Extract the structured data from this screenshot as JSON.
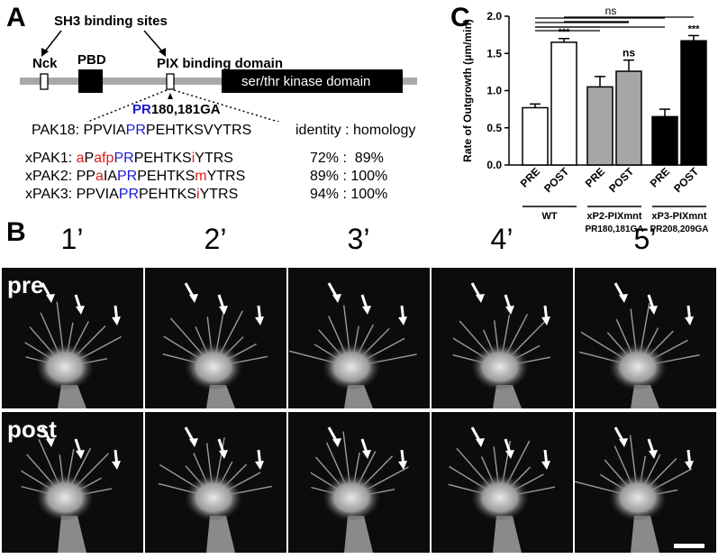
{
  "panel_a": {
    "letter": "A",
    "sh3_label": "SH3 binding sites",
    "nck_label": "Nck",
    "pbd_label": "PBD",
    "pix_label": "PIX binding domain",
    "kinase_label": "ser/thr kinase domain",
    "mutation_label_blue": "PR",
    "mutation_label_rest": "180,181GA",
    "identity_header": "identity : homology",
    "pak18": {
      "name": "PAK18:",
      "segments": [
        {
          "t": "PPVIA",
          "c": "k"
        },
        {
          "t": "PR",
          "c": "b"
        },
        {
          "t": "PEHTKSVYTRS",
          "c": "k"
        }
      ]
    },
    "rows": [
      {
        "name": "xPAK1:",
        "segments": [
          {
            "t": "a",
            "c": "r"
          },
          {
            "t": "P",
            "c": "k"
          },
          {
            "t": "afp",
            "c": "r"
          },
          {
            "t": "PR",
            "c": "b"
          },
          {
            "t": "PEHTKS",
            "c": "k"
          },
          {
            "t": "i",
            "c": "r"
          },
          {
            "t": "YTRS",
            "c": "k"
          }
        ],
        "identity": "72% :  89%"
      },
      {
        "name": "xPAK2:",
        "segments": [
          {
            "t": "PP",
            "c": "k"
          },
          {
            "t": "a",
            "c": "r"
          },
          {
            "t": "IA",
            "c": "k"
          },
          {
            "t": "PR",
            "c": "b"
          },
          {
            "t": "PEHTKS",
            "c": "k"
          },
          {
            "t": "m",
            "c": "r"
          },
          {
            "t": "YTRS",
            "c": "k"
          }
        ],
        "identity": "89% : 100%"
      },
      {
        "name": "xPAK3:",
        "segments": [
          {
            "t": "PPVIA",
            "c": "k"
          },
          {
            "t": "PR",
            "c": "b"
          },
          {
            "t": "PEHTKS",
            "c": "k"
          },
          {
            "t": "i",
            "c": "r"
          },
          {
            "t": "YTRS",
            "c": "k"
          }
        ],
        "identity": "94% : 100%"
      }
    ]
  },
  "panel_c": {
    "letter": "C",
    "chart_data": {
      "type": "bar",
      "ylabel": "Rate of Outgrowth (μm/min)",
      "ylim": [
        0,
        2.0
      ],
      "yticks": [
        "0.0",
        "0.5",
        "1.0",
        "1.5",
        "2.0"
      ],
      "bars": [
        {
          "label": "PRE",
          "value": 0.77,
          "error": 0.05,
          "color": "#ffffff",
          "sig": ""
        },
        {
          "label": "POST",
          "value": 1.65,
          "error": 0.05,
          "color": "#ffffff",
          "sig": "***"
        },
        {
          "label": "PRE",
          "value": 1.05,
          "error": 0.14,
          "color": "#a6a6a6",
          "sig": ""
        },
        {
          "label": "POST",
          "value": 1.26,
          "error": 0.15,
          "color": "#a6a6a6",
          "sig": "ns"
        },
        {
          "label": "PRE",
          "value": 0.65,
          "error": 0.1,
          "color": "#000000",
          "sig": ""
        },
        {
          "label": "POST",
          "value": 1.67,
          "error": 0.07,
          "color": "#000000",
          "sig": "***"
        }
      ],
      "groups": [
        {
          "name": "WT",
          "sub": ""
        },
        {
          "name": "xP2-PIXmnt",
          "sub": "PR180,181GA"
        },
        {
          "name": "xP3-PIXmnt",
          "sub": "PR208,209GA"
        }
      ],
      "top_annotation": "ns"
    }
  },
  "panel_b": {
    "letter": "B",
    "timepoints": [
      "1’",
      "2’",
      "3’",
      "4’",
      "5’"
    ],
    "rows": [
      "pre",
      "post"
    ]
  }
}
